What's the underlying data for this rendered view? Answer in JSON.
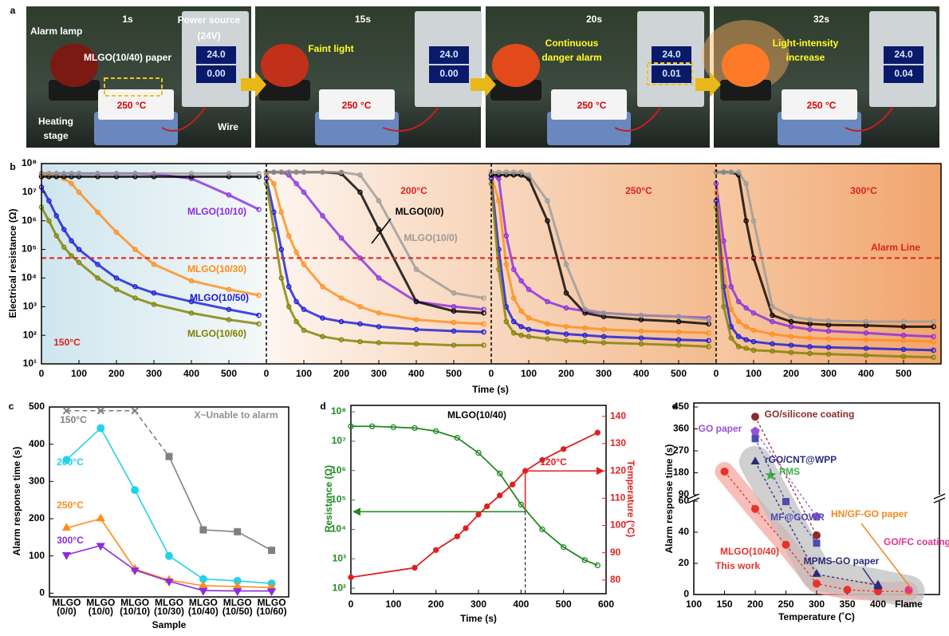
{
  "panel_labels": [
    "a",
    "b",
    "c",
    "d",
    "e"
  ],
  "panel_a": {
    "frames": [
      {
        "time": "1s",
        "labels": [
          "Alarm lamp",
          "Power source",
          "(24V)",
          "MLGO(10/40) paper",
          "250 °C",
          "Heating",
          "stage",
          "Wire"
        ],
        "display": [
          "24.0",
          "0.00"
        ]
      },
      {
        "time": "15s",
        "labels": [
          "Faint light",
          "250 °C"
        ],
        "display": [
          "24.0",
          "0.00"
        ]
      },
      {
        "time": "20s",
        "labels": [
          "Continuous",
          "danger alarm",
          "250 °C"
        ],
        "display": [
          "24.0",
          "0.01"
        ]
      },
      {
        "time": "32s",
        "labels": [
          "Light-intensity",
          "increase",
          "250 °C"
        ],
        "display": [
          "24.0",
          "0.04"
        ]
      }
    ]
  },
  "chart_data": [
    {
      "type": "line",
      "y_label": "Electrical resistance (Ω)",
      "x_label": "Time (s)",
      "log_y": true,
      "ylim": [
        10,
        100000000
      ],
      "yticks": [
        {
          "value": 10,
          "label": "10¹"
        },
        {
          "value": 100,
          "label": "10²"
        },
        {
          "value": 1000,
          "label": "10³"
        },
        {
          "value": 10000,
          "label": "10⁴"
        },
        {
          "value": 100000,
          "label": "10⁵"
        },
        {
          "value": 1000000,
          "label": "10⁶"
        },
        {
          "value": 10000000,
          "label": "10⁷"
        },
        {
          "value": 100000000,
          "label": "10⁸"
        }
      ],
      "xlim": [
        0,
        600
      ],
      "xticks": [
        0,
        100,
        200,
        300,
        400,
        500
      ],
      "alarm_line": {
        "value": 50000,
        "label": "Alarm Line"
      },
      "x": [
        0,
        20,
        40,
        60,
        80,
        100,
        150,
        200,
        250,
        300,
        400,
        500,
        580
      ],
      "series": [
        {
          "name": "MLGO(10/10)",
          "color": "#8a2be2"
        },
        {
          "name": "MLGO(10/30)",
          "color": "#ff8c1a"
        },
        {
          "name": "MLGO(10/50)",
          "color": "#1a1ad6"
        },
        {
          "name": "MLGO(10/60)",
          "color": "#808000"
        },
        {
          "name": "MLGO(0/0)",
          "color": "#000000"
        },
        {
          "name": "MLGO(10/0)",
          "color": "#9a9a9a"
        }
      ],
      "panels": [
        {
          "label": "150°C",
          "series": [
            {
              "values": [
                45000000.0,
                45000000.0,
                45000000.0,
                45000000.0,
                45000000.0,
                45000000.0,
                45000000.0,
                45000000.0,
                45000000.0,
                43000000.0,
                30000000.0,
                8000000.0,
                2500000.0
              ]
            },
            {
              "values": [
                40000000.0,
                40000000.0,
                38000000.0,
                30000000.0,
                20000000.0,
                10000000.0,
                2000000.0,
                400000.0,
                100000.0,
                30000.0,
                8000.0,
                4000.0,
                2500.0
              ]
            },
            {
              "values": [
                15000000.0,
                5000000.0,
                1500000.0,
                500000.0,
                200000.0,
                100000.0,
                30000.0,
                10000.0,
                5000.0,
                3000.0,
                1500.0,
                800,
                500
              ]
            },
            {
              "values": [
                3000000.0,
                1000000.0,
                300000.0,
                120000.0,
                60000.0,
                35000.0,
                10000.0,
                4000.0,
                2000.0,
                1200.0,
                600,
                350,
                250
              ]
            },
            {
              "values": [
                35000000.0,
                35000000.0,
                35000000.0,
                35000000.0,
                35000000.0,
                35000000.0,
                35000000.0,
                35000000.0,
                35000000.0,
                35000000.0,
                35000000.0,
                35000000.0,
                35000000.0
              ]
            },
            {
              "values": [
                45000000.0,
                45000000.0,
                45000000.0,
                45000000.0,
                45000000.0,
                45000000.0,
                45000000.0,
                45000000.0,
                45000000.0,
                45000000.0,
                45000000.0,
                45000000.0,
                45000000.0
              ]
            }
          ]
        },
        {
          "label": "200°C",
          "series": [
            {
              "values": [
                50000000.0,
                50000000.0,
                50000000.0,
                40000000.0,
                20000000.0,
                10000000.0,
                1500000.0,
                250000.0,
                50000.0,
                10000.0,
                1500.0,
                1000.0,
                800
              ]
            },
            {
              "values": [
                40000000.0,
                20000000.0,
                2000000.0,
                300000.0,
                80000.0,
                30000.0,
                5000.0,
                2000.0,
                1000.0,
                600,
                350,
                280,
                250
              ]
            },
            {
              "values": [
                30000000.0,
                2000000.0,
                100000.0,
                5000.0,
                1500.0,
                800,
                400,
                300,
                250,
                200,
                160,
                140,
                130
              ]
            },
            {
              "values": [
                20000000.0,
                500000.0,
                10000.0,
                1000.0,
                300,
                150,
                90,
                70,
                60,
                55,
                50,
                45,
                45
              ]
            },
            {
              "values": [
                50000000.0,
                50000000.0,
                50000000.0,
                50000000.0,
                50000000.0,
                50000000.0,
                50000000.0,
                45000000.0,
                10000000.0,
                500000.0,
                1500.0,
                700,
                600
              ]
            },
            {
              "values": [
                50000000.0,
                50000000.0,
                50000000.0,
                50000000.0,
                50000000.0,
                50000000.0,
                50000000.0,
                50000000.0,
                40000000.0,
                5000000.0,
                20000.0,
                3000.0,
                2000.0
              ]
            }
          ]
        },
        {
          "label": "250°C",
          "series": [
            {
              "values": [
                40000000.0,
                30000000.0,
                300000.0,
                20000.0,
                8000.0,
                4000.0,
                1500.0,
                900,
                700,
                600,
                500,
                450,
                400
              ]
            },
            {
              "values": [
                40000000.0,
                5000000.0,
                30000.0,
                2000.0,
                700,
                400,
                250,
                200,
                180,
                160,
                140,
                130,
                120
              ]
            },
            {
              "values": [
                30000000.0,
                100000.0,
                1000.0,
                300,
                200,
                160,
                130,
                110,
                100,
                90,
                80,
                70,
                65
              ]
            },
            {
              "values": [
                20000000.0,
                20000.0,
                300,
                120,
                100,
                90,
                75,
                65,
                60,
                55,
                50,
                45,
                40
              ]
            },
            {
              "values": [
                40000000.0,
                40000000.0,
                40000000.0,
                40000000.0,
                40000000.0,
                30000000.0,
                1000000.0,
                3000.0,
                600,
                450,
                350,
                300,
                250
              ]
            },
            {
              "values": [
                50000000.0,
                50000000.0,
                50000000.0,
                50000000.0,
                50000000.0,
                40000000.0,
                5000000.0,
                30000.0,
                800,
                600,
                500,
                450,
                350
              ]
            }
          ]
        },
        {
          "label": "300°C",
          "series": [
            {
              "values": [
                20000000.0,
                200000.0,
                5000.0,
                1500.0,
                900,
                600,
                300,
                200,
                160,
                140,
                120,
                100,
                90
              ]
            },
            {
              "values": [
                10000000.0,
                20000.0,
                800,
                300,
                200,
                150,
                110,
                90,
                80,
                75,
                70,
                65,
                60
              ]
            },
            {
              "values": [
                5000000.0,
                5000.0,
                200,
                90,
                70,
                60,
                50,
                45,
                40,
                38,
                35,
                32,
                30
              ]
            },
            {
              "values": [
                3000000.0,
                1000.0,
                80,
                40,
                35,
                30,
                28,
                25,
                23,
                22,
                20,
                18,
                17
              ]
            },
            {
              "values": [
                50000000.0,
                50000000.0,
                50000000.0,
                40000000.0,
                1000000.0,
                50000.0,
                500,
                300,
                250,
                230,
                220,
                200,
                200
              ]
            },
            {
              "values": [
                50000000.0,
                50000000.0,
                50000000.0,
                50000000.0,
                20000000.0,
                1000000.0,
                1000.0,
                450,
                350,
                320,
                300,
                300,
                300
              ]
            }
          ]
        }
      ]
    },
    {
      "type": "line",
      "y_label": "Alarm response time (s)",
      "x_label": "Sample",
      "note": "X~Unable to alarm",
      "categories": [
        [
          "MLGO",
          "(0/0)"
        ],
        [
          "MLGO",
          "(10/0)"
        ],
        [
          "MLGO",
          "(10/10)"
        ],
        [
          "MLGO",
          "(10/30)"
        ],
        [
          "MLGO",
          "(10/40)"
        ],
        [
          "MLGO",
          "(10/50)"
        ],
        [
          "MLGO",
          "(10/60)"
        ]
      ],
      "ylim": [
        -10,
        500
      ],
      "yticks": [
        0,
        100,
        200,
        300,
        400,
        500
      ],
      "series": [
        {
          "name": "150°C",
          "color": "#808080",
          "markers": [
            "x",
            "x",
            "x",
            "square",
            "square",
            "square",
            "square"
          ],
          "values": [
            490,
            490,
            490,
            367,
            170,
            165,
            115
          ]
        },
        {
          "name": "200°C",
          "color": "#22d3e6",
          "marker": "circle",
          "values": [
            358,
            443,
            277,
            100,
            38,
            33,
            26
          ]
        },
        {
          "name": "250°C",
          "color": "#ff8c1a",
          "marker": "triangle",
          "values": [
            175,
            200,
            65,
            35,
            20,
            18,
            15
          ]
        },
        {
          "name": "300°C",
          "color": "#8a2be2",
          "marker": "down",
          "values": [
            103,
            128,
            62,
            32,
            7,
            6,
            6
          ]
        }
      ]
    },
    {
      "type": "dual_line",
      "title": "MLGO(10/40)",
      "x_label": "Time (s)",
      "y_label": "Resistance (Ω)",
      "y2_label": "Temperature (°C)",
      "xlim": [
        0,
        600
      ],
      "xticks": [
        0,
        100,
        200,
        300,
        400,
        500,
        600
      ],
      "log_y": true,
      "ylim": [
        65,
        165000000
      ],
      "yticks": [
        {
          "value": 100,
          "label": "10²"
        },
        {
          "value": 1000,
          "label": "10³"
        },
        {
          "value": 10000,
          "label": "10⁴"
        },
        {
          "value": 100000,
          "label": "10⁵"
        },
        {
          "value": 1000000,
          "label": "10⁶"
        },
        {
          "value": 10000000,
          "label": "10⁷"
        },
        {
          "value": 100000000,
          "label": "10⁸"
        }
      ],
      "y2lim": [
        75,
        144
      ],
      "y2ticks": [
        80,
        90,
        100,
        110,
        120,
        130,
        140
      ],
      "guide": {
        "x": 410,
        "resistance": 40000,
        "temperature": 120,
        "label": "120°C"
      },
      "series": [
        {
          "name": "Resistance",
          "color": "#1e8a1e",
          "x": [
            0,
            50,
            100,
            150,
            200,
            250,
            300,
            350,
            400,
            450,
            500,
            550,
            580
          ],
          "values": [
            32000000.0,
            32000000.0,
            30000000.0,
            28000000.0,
            22000000.0,
            13000000.0,
            4000000.0,
            800000.0,
            70000.0,
            10000.0,
            2500.0,
            900,
            600
          ]
        },
        {
          "name": "Temperature",
          "color": "#e02020",
          "axis": "y2",
          "x": [
            0,
            150,
            200,
            250,
            270,
            300,
            320,
            350,
            380,
            410,
            450,
            500,
            580
          ],
          "values": [
            81,
            84.5,
            91,
            96,
            99,
            104,
            107,
            111,
            115,
            120,
            124,
            128,
            134
          ]
        }
      ]
    },
    {
      "type": "scatter",
      "x_label": "Temperature (˚C)",
      "y_label": "Alarm response time (s)",
      "xlim": [
        100,
        500
      ],
      "xticks": [
        100,
        150,
        200,
        250,
        300,
        350,
        400,
        {
          "value": 450,
          "label": "Flame"
        }
      ],
      "ylim": [
        0,
        450
      ],
      "ybreak": [
        60,
        90
      ],
      "yticks": [
        0,
        20,
        40,
        60,
        90,
        180,
        270,
        360,
        450
      ],
      "series": [
        {
          "name": "MLGO(10/40)",
          "note": "This work",
          "color": "#e8312a",
          "marker": "circle",
          "x": [
            150,
            200,
            250,
            300,
            350,
            400,
            450
          ],
          "values": [
            185,
            55,
            32,
            7,
            3,
            2,
            2
          ]
        },
        {
          "name": "GO/silicone coating",
          "color": "#8b2b2b",
          "marker": "circle",
          "x": [
            200,
            300
          ],
          "values": [
            410,
            38
          ]
        },
        {
          "name": "GO paper",
          "color": "#9b4fd6",
          "marker": "pentagon",
          "x": [
            200,
            300
          ],
          "values": [
            350,
            50
          ]
        },
        {
          "name": "rGO/CNT@WPP",
          "color": "#2b2b7a",
          "marker": "triangle",
          "x": [
            200,
            300,
            400
          ],
          "values": [
            225,
            13,
            6
          ]
        },
        {
          "name": "PMS",
          "color": "#3cb043",
          "marker": "star",
          "x": [
            225
          ],
          "values": [
            170
          ]
        },
        {
          "name": "MF@GOWR",
          "color": "#4b4bb0",
          "marker": "square",
          "x": [
            200,
            250,
            300
          ],
          "values": [
            320,
            62,
            33
          ]
        },
        {
          "name": "HN/GF-GO paper",
          "color": "#f08a1c",
          "marker": "circle",
          "x": [
            450
          ],
          "values": [
            2
          ]
        },
        {
          "name": "MPMS-GO paper",
          "color": "#2b2b7a",
          "marker": "triangle",
          "x": [
            400
          ],
          "values": [
            5
          ]
        },
        {
          "name": "GO/FC coating",
          "color": "#e0358f",
          "marker": "circle",
          "x": [
            450
          ],
          "values": [
            3
          ]
        }
      ]
    }
  ]
}
